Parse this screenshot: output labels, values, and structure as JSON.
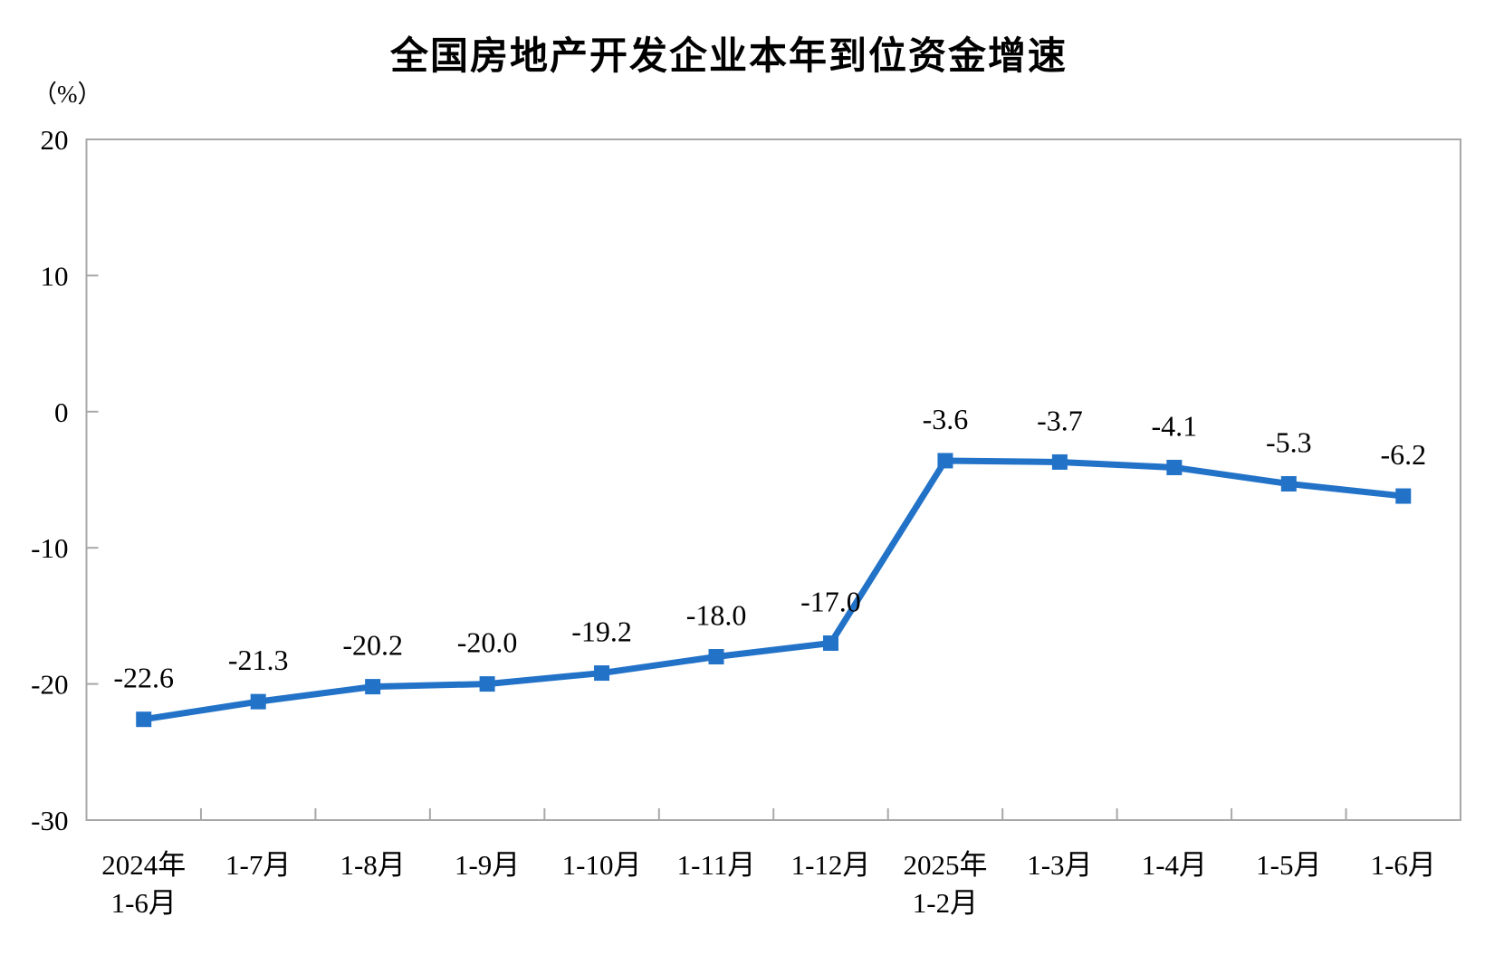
{
  "chart": {
    "title": "全国房地产开发企业本年到位资金增速",
    "unit_label": "（%）"
  },
  "chart_data": {
    "type": "line",
    "title": "全国房地产开发企业本年到位资金增速",
    "xlabel": "",
    "ylabel": "（%）",
    "categories": [
      "2024年\n1-6月",
      "1-7月",
      "1-8月",
      "1-9月",
      "1-10月",
      "1-11月",
      "1-12月",
      "2025年\n1-2月",
      "1-3月",
      "1-4月",
      "1-5月",
      "1-6月"
    ],
    "values": [
      -22.6,
      -21.3,
      -20.2,
      -20.0,
      -19.2,
      -18.0,
      -17.0,
      -3.6,
      -3.7,
      -4.1,
      -5.3,
      -6.2
    ],
    "data_labels": [
      "-22.6",
      "-21.3",
      "-20.2",
      "-20.0",
      "-19.2",
      "-18.0",
      "-17.0",
      "-3.6",
      "-3.7",
      "-4.1",
      "-5.3",
      "-6.2"
    ],
    "ylim": [
      -30,
      20
    ],
    "yticks": [
      20,
      10,
      0,
      -10,
      -20,
      -30
    ],
    "ytick_labels": [
      "20",
      "10",
      "0",
      "-10",
      "-20",
      "-30"
    ],
    "grid": false,
    "legend": "none",
    "line_color": "#2272C8",
    "marker": "square",
    "axis_color": "#A8A8A8",
    "text_color": "#000000"
  }
}
